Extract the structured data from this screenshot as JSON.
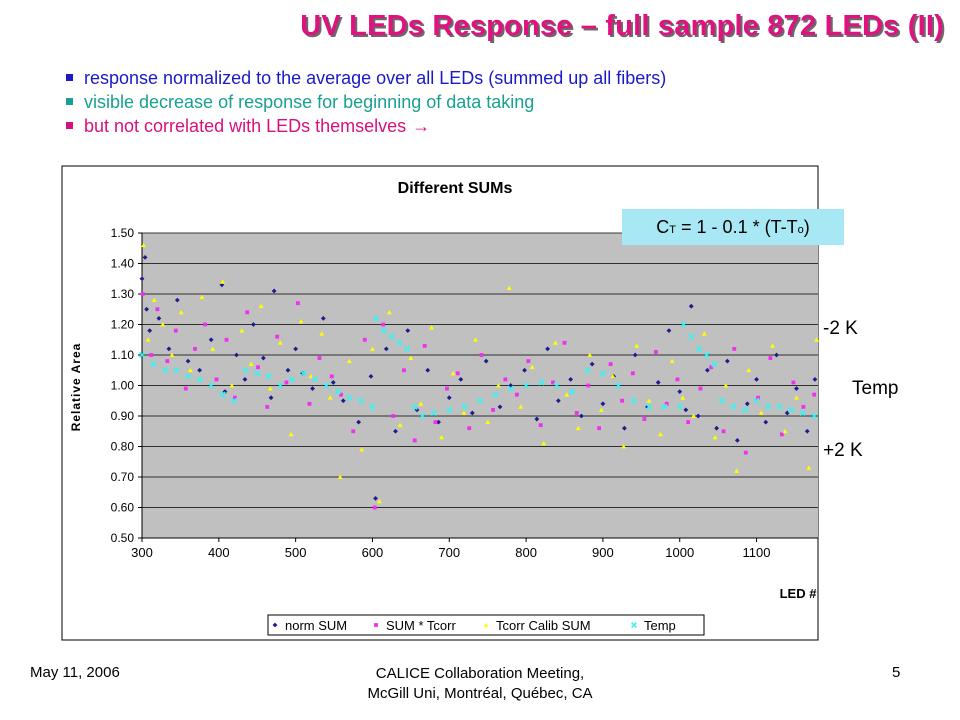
{
  "slide": {
    "title": "UV LEDs Response – full sample 872 LEDs (II)",
    "bullets": [
      "response normalized to the average over all LEDs (summed up all fibers)",
      "visible decrease of response for beginning of data taking",
      "but not correlated with LEDs themselves"
    ],
    "bullet_arrow": "→",
    "formula": {
      "c": "C",
      "sub1": "T",
      "mid": " = 1 - 0.1 * (T-T",
      "sub2": "o",
      "end": ")"
    },
    "side_labels": {
      "minus": "-2 K",
      "temp": "Temp",
      "plus": "+2 K"
    },
    "footer": {
      "date": "May 11, 2006",
      "line1": "CALICE Collaboration Meeting,",
      "line2": "McGill Uni,  Montréal, Québec, CA",
      "page": "5"
    }
  },
  "colors": {
    "title": "#e0127f",
    "plot_bg": "#c0c0c0",
    "norm": "#1c1c8c",
    "tcorr": "#f030f0",
    "calib": "#ffff00",
    "temp": "#40f0f0"
  },
  "chart_data": {
    "type": "scatter",
    "title": "Different SUMs",
    "xlabel": "LED #",
    "ylabel": "Relative Area",
    "xlim": [
      300,
      1180
    ],
    "ylim": [
      0.5,
      1.5
    ],
    "xticks": [
      "300",
      "400",
      "500",
      "600",
      "700",
      "800",
      "900",
      "1000",
      "1100"
    ],
    "yticks": [
      "0.50",
      "0.60",
      "0.70",
      "0.80",
      "0.90",
      "1.00",
      "1.10",
      "1.20",
      "1.30",
      "1.40",
      "1.50"
    ],
    "grid": true,
    "legend_position": "bottom",
    "series": [
      {
        "name": "norm SUM",
        "marker": "diamond",
        "x": [
          300,
          304,
          306,
          310,
          322,
          335,
          346,
          360,
          375,
          390,
          404,
          408,
          423,
          434,
          445,
          458,
          468,
          472,
          490,
          500,
          509,
          522,
          536,
          549,
          562,
          582,
          598,
          604,
          618,
          630,
          646,
          658,
          672,
          686,
          700,
          715,
          730,
          748,
          766,
          780,
          798,
          814,
          828,
          842,
          858,
          872,
          886,
          900,
          914,
          928,
          942,
          958,
          972,
          986,
          1000,
          1008,
          1015,
          1024,
          1036,
          1048,
          1062,
          1075,
          1088,
          1100,
          1112,
          1126,
          1140,
          1152,
          1166,
          1176
        ],
        "y": [
          1.35,
          1.42,
          1.25,
          1.18,
          1.22,
          1.12,
          1.28,
          1.08,
          1.05,
          1.15,
          1.33,
          0.98,
          1.1,
          1.02,
          1.2,
          1.09,
          0.96,
          1.31,
          1.05,
          1.12,
          1.04,
          0.99,
          1.22,
          1.01,
          0.95,
          0.88,
          1.03,
          0.63,
          1.12,
          0.85,
          1.18,
          0.92,
          1.05,
          0.88,
          0.96,
          1.02,
          0.91,
          1.08,
          0.93,
          1.0,
          1.05,
          0.89,
          1.12,
          0.95,
          1.02,
          0.9,
          1.07,
          0.94,
          1.03,
          0.86,
          1.1,
          0.93,
          1.01,
          1.18,
          0.98,
          0.92,
          1.26,
          0.9,
          1.05,
          0.86,
          1.08,
          0.82,
          0.94,
          1.02,
          0.88,
          1.1,
          0.91,
          0.99,
          0.85,
          1.02
        ]
      },
      {
        "name": "SUM * Tcorr",
        "marker": "square",
        "x": [
          301,
          312,
          320,
          333,
          344,
          357,
          369,
          382,
          397,
          410,
          421,
          437,
          451,
          463,
          476,
          488,
          503,
          518,
          531,
          547,
          559,
          575,
          590,
          603,
          614,
          627,
          641,
          655,
          668,
          682,
          697,
          711,
          726,
          742,
          757,
          773,
          788,
          803,
          819,
          835,
          850,
          866,
          881,
          895,
          910,
          925,
          939,
          954,
          969,
          983,
          997,
          1011,
          1027,
          1041,
          1057,
          1071,
          1086,
          1102,
          1118,
          1133,
          1148,
          1161,
          1175
        ],
        "y": [
          1.3,
          1.1,
          1.25,
          1.08,
          1.18,
          0.99,
          1.12,
          1.2,
          1.02,
          1.15,
          0.96,
          1.24,
          1.06,
          0.93,
          1.16,
          1.01,
          1.27,
          0.94,
          1.09,
          1.03,
          0.97,
          0.85,
          1.15,
          0.6,
          1.2,
          0.9,
          1.05,
          0.82,
          1.13,
          0.88,
          0.99,
          1.04,
          0.86,
          1.1,
          0.92,
          1.02,
          0.97,
          1.08,
          0.87,
          1.01,
          1.14,
          0.91,
          1.0,
          0.86,
          1.07,
          0.95,
          1.04,
          0.89,
          1.11,
          0.94,
          1.02,
          0.88,
          0.99,
          1.06,
          0.85,
          1.12,
          0.78,
          0.96,
          1.09,
          0.84,
          1.01,
          0.93,
          0.97
        ]
      },
      {
        "name": "Tcorr Calib SUM",
        "marker": "triangle",
        "x": [
          302,
          308,
          316,
          327,
          339,
          351,
          363,
          378,
          392,
          405,
          417,
          430,
          442,
          455,
          467,
          480,
          494,
          507,
          520,
          534,
          545,
          558,
          570,
          586,
          600,
          609,
          622,
          636,
          650,
          663,
          677,
          690,
          705,
          719,
          734,
          750,
          764,
          778,
          793,
          808,
          823,
          838,
          853,
          868,
          883,
          898,
          913,
          927,
          944,
          960,
          975,
          990,
          1004,
          1018,
          1032,
          1046,
          1060,
          1074,
          1090,
          1106,
          1121,
          1137,
          1152,
          1168,
          1178
        ],
        "y": [
          1.46,
          1.15,
          1.28,
          1.2,
          1.1,
          1.24,
          1.05,
          1.29,
          1.12,
          1.34,
          1.0,
          1.18,
          1.07,
          1.26,
          0.99,
          1.14,
          0.84,
          1.21,
          1.03,
          1.17,
          0.96,
          0.7,
          1.08,
          0.79,
          1.12,
          0.62,
          1.24,
          0.87,
          1.09,
          0.94,
          1.19,
          0.83,
          1.04,
          0.91,
          1.15,
          0.88,
          1.0,
          1.32,
          0.93,
          1.06,
          0.81,
          1.14,
          0.97,
          0.86,
          1.1,
          0.92,
          1.03,
          0.8,
          1.13,
          0.95,
          0.84,
          1.08,
          0.96,
          0.9,
          1.17,
          0.83,
          1.0,
          0.72,
          1.05,
          0.91,
          1.13,
          0.85,
          0.96,
          0.73,
          1.15
        ]
      },
      {
        "name": "Temp",
        "marker": "x",
        "x": [
          300,
          315,
          330,
          345,
          360,
          375,
          390,
          405,
          420,
          435,
          450,
          465,
          480,
          495,
          510,
          525,
          540,
          555,
          570,
          585,
          600,
          605,
          615,
          625,
          635,
          645,
          655,
          665,
          680,
          700,
          720,
          740,
          760,
          780,
          800,
          820,
          840,
          860,
          880,
          900,
          920,
          940,
          960,
          980,
          1000,
          1005,
          1015,
          1025,
          1035,
          1045,
          1055,
          1070,
          1085,
          1100,
          1115,
          1130,
          1145,
          1160,
          1175
        ],
        "y": [
          1.1,
          1.07,
          1.05,
          1.05,
          1.03,
          1.02,
          1.0,
          0.97,
          0.95,
          1.05,
          1.04,
          1.03,
          1.0,
          1.02,
          1.04,
          1.02,
          1.0,
          0.98,
          0.96,
          0.95,
          0.93,
          1.22,
          1.18,
          1.16,
          1.14,
          1.12,
          0.93,
          0.9,
          0.91,
          0.92,
          0.93,
          0.95,
          0.97,
          0.99,
          1.0,
          1.01,
          1.0,
          0.98,
          1.05,
          1.04,
          1.0,
          0.95,
          0.93,
          0.93,
          0.93,
          1.2,
          1.16,
          1.12,
          1.1,
          1.07,
          0.95,
          0.93,
          0.92,
          0.95,
          0.93,
          0.93,
          0.92,
          0.91,
          0.9
        ]
      }
    ]
  }
}
